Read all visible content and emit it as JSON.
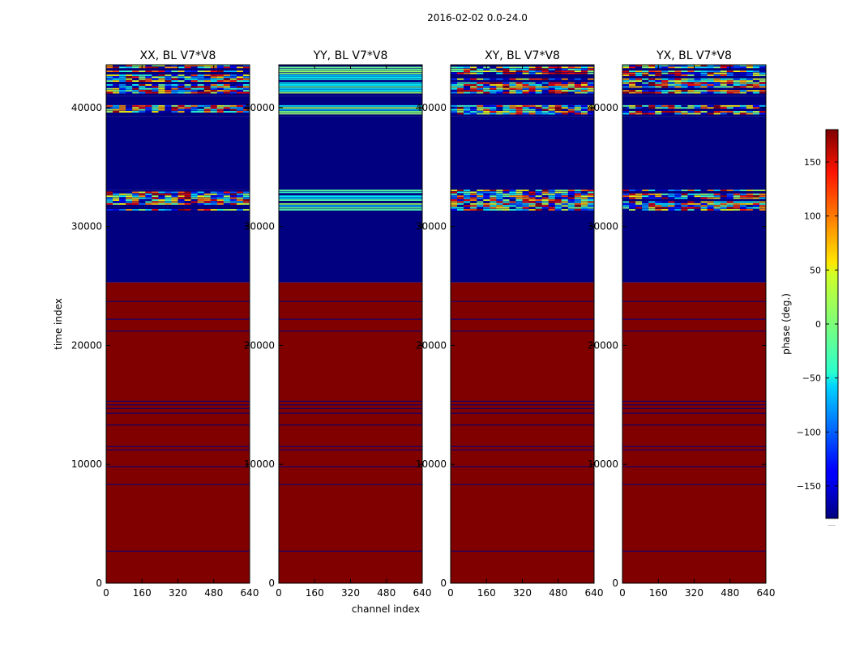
{
  "figure": {
    "suptitle": "2016-02-02 0.0-24.0",
    "xlabel": "channel index",
    "ylabel": "time index"
  },
  "chart_data": [
    {
      "type": "heatmap",
      "title": "XX, BL V7*V8",
      "xlim": [
        0,
        640
      ],
      "ylim": [
        0,
        43600
      ],
      "xticks": [
        0,
        160,
        320,
        480,
        640
      ],
      "yticks": [
        0,
        10000,
        20000,
        30000,
        40000
      ],
      "value_units": "phase (deg.)",
      "bands": [
        {
          "from": 0,
          "to": 25300,
          "phase": 180,
          "kind": "solid"
        },
        {
          "from": 25300,
          "to": 31200,
          "phase": -180,
          "kind": "solid"
        },
        {
          "from": 31200,
          "to": 33100,
          "phase": 0,
          "kind": "noisy"
        },
        {
          "from": 33100,
          "to": 39300,
          "phase": -180,
          "kind": "solid"
        },
        {
          "from": 39300,
          "to": 40200,
          "phase": 0,
          "kind": "noisy"
        },
        {
          "from": 40200,
          "to": 41000,
          "phase": -180,
          "kind": "solid"
        },
        {
          "from": 41000,
          "to": 43600,
          "phase": 0,
          "kind": "noisy"
        }
      ],
      "flag_rows": [
        2700,
        8300,
        9800,
        11200,
        11500,
        13300,
        14300,
        14700,
        15000,
        15300,
        21200,
        22200,
        23700
      ]
    },
    {
      "type": "heatmap",
      "title": "YY, BL V7*V8",
      "xlim": [
        0,
        640
      ],
      "ylim": [
        0,
        43600
      ],
      "xticks": [
        0,
        160,
        320,
        480,
        640
      ],
      "yticks": [
        0,
        10000,
        20000,
        30000,
        40000
      ],
      "value_units": "phase (deg.)",
      "bands": [
        {
          "from": 0,
          "to": 25300,
          "phase": 180,
          "kind": "solid"
        },
        {
          "from": 25300,
          "to": 31200,
          "phase": -180,
          "kind": "solid"
        },
        {
          "from": 31200,
          "to": 33100,
          "phase": -30,
          "kind": "striped"
        },
        {
          "from": 33100,
          "to": 39300,
          "phase": -180,
          "kind": "solid"
        },
        {
          "from": 39300,
          "to": 40200,
          "phase": -30,
          "kind": "striped"
        },
        {
          "from": 40200,
          "to": 41000,
          "phase": -180,
          "kind": "solid"
        },
        {
          "from": 41000,
          "to": 43600,
          "phase": -30,
          "kind": "striped"
        }
      ],
      "flag_rows": [
        2700,
        8300,
        9800,
        11200,
        11500,
        13300,
        14300,
        14700,
        15000,
        15300,
        21200,
        22200,
        23700
      ]
    },
    {
      "type": "heatmap",
      "title": "XY, BL V7*V8",
      "xlim": [
        0,
        640
      ],
      "ylim": [
        0,
        43600
      ],
      "xticks": [
        0,
        160,
        320,
        480,
        640
      ],
      "yticks": [
        0,
        10000,
        20000,
        30000,
        40000
      ],
      "value_units": "phase (deg.)",
      "bands": [
        {
          "from": 0,
          "to": 25300,
          "phase": 180,
          "kind": "solid"
        },
        {
          "from": 25300,
          "to": 31200,
          "phase": -180,
          "kind": "solid"
        },
        {
          "from": 31200,
          "to": 33100,
          "phase": 0,
          "kind": "noisy"
        },
        {
          "from": 33100,
          "to": 39300,
          "phase": -180,
          "kind": "solid"
        },
        {
          "from": 39300,
          "to": 40200,
          "phase": 0,
          "kind": "noisy"
        },
        {
          "from": 40200,
          "to": 41000,
          "phase": -180,
          "kind": "solid"
        },
        {
          "from": 41000,
          "to": 43600,
          "phase": 0,
          "kind": "noisy"
        }
      ],
      "flag_rows": [
        2700,
        8300,
        9800,
        11200,
        11500,
        13300,
        14300,
        14700,
        15000,
        15300,
        21200,
        22200,
        23700
      ]
    },
    {
      "type": "heatmap",
      "title": "YX, BL V7*V8",
      "xlim": [
        0,
        640
      ],
      "ylim": [
        0,
        43600
      ],
      "xticks": [
        0,
        160,
        320,
        480,
        640
      ],
      "yticks": [
        0,
        10000,
        20000,
        30000,
        40000
      ],
      "value_units": "phase (deg.)",
      "bands": [
        {
          "from": 0,
          "to": 25300,
          "phase": 180,
          "kind": "solid"
        },
        {
          "from": 25300,
          "to": 31200,
          "phase": -180,
          "kind": "solid"
        },
        {
          "from": 31200,
          "to": 33100,
          "phase": 0,
          "kind": "noisy"
        },
        {
          "from": 33100,
          "to": 39300,
          "phase": -180,
          "kind": "solid"
        },
        {
          "from": 39300,
          "to": 40200,
          "phase": 0,
          "kind": "noisy"
        },
        {
          "from": 40200,
          "to": 41000,
          "phase": -180,
          "kind": "solid"
        },
        {
          "from": 41000,
          "to": 43600,
          "phase": 0,
          "kind": "noisy"
        }
      ],
      "flag_rows": [
        2700,
        8300,
        9800,
        11200,
        11500,
        13300,
        14300,
        14700,
        15000,
        15300,
        21200,
        22200,
        23700
      ]
    }
  ],
  "colorbar": {
    "label": "phase (deg.)",
    "range": [
      -180,
      180
    ],
    "ticks": [
      150,
      100,
      50,
      0,
      -50,
      -100,
      -150
    ],
    "tick_labels": [
      "150",
      "100",
      "50",
      "0",
      "−50",
      "−100",
      "−150"
    ],
    "footer": "....."
  },
  "colors": {
    "min": "#00007f",
    "max": "#7f0000",
    "flag_line": "#00007f"
  }
}
